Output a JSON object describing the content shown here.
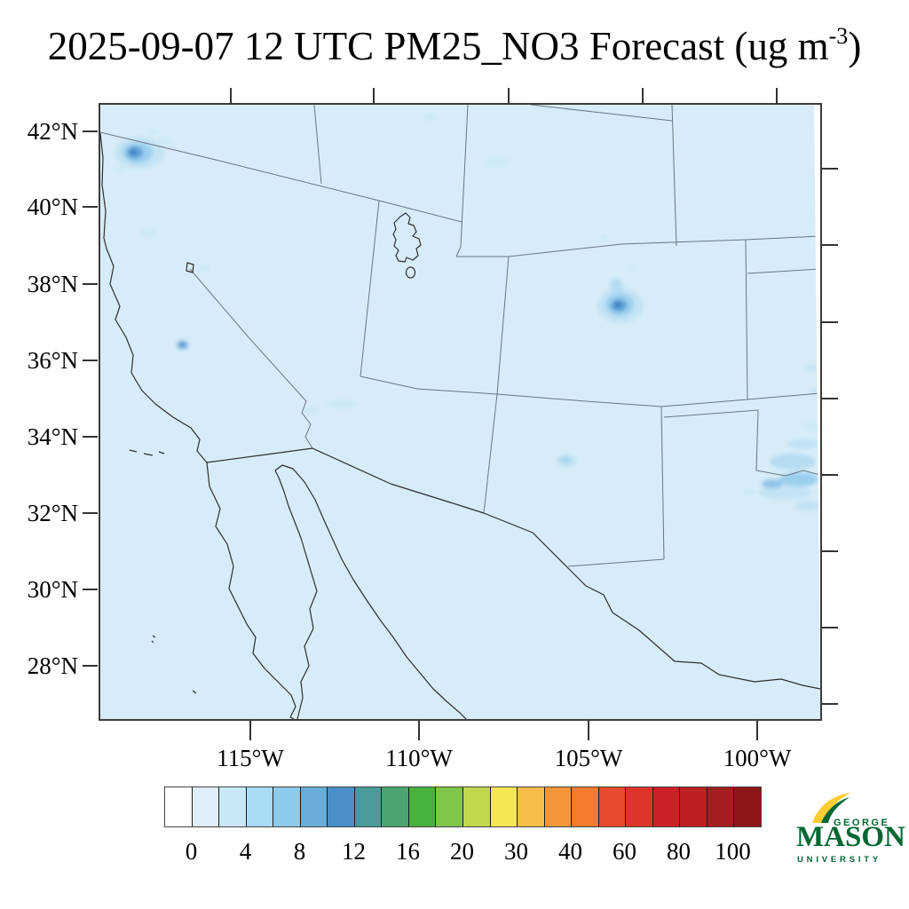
{
  "title": {
    "main": "2025-09-07 12 UTC PM25_NO3 Forecast (ug m",
    "sup": "-3",
    "close": ")"
  },
  "map": {
    "lat_labels": [
      "42°N",
      "40°N",
      "38°N",
      "36°N",
      "34°N",
      "32°N",
      "30°N",
      "28°N"
    ],
    "lon_labels": [
      "115°W",
      "110°W",
      "105°W",
      "100°W"
    ],
    "fill_color": "#d7ecf8",
    "hotspots": [
      {
        "region": "southeast-oregon",
        "approx_value_ug_m3": "8-12"
      },
      {
        "region": "southern-nevada",
        "approx_value_ug_m3": "8-12"
      },
      {
        "region": "southern-colorado",
        "approx_value_ug_m3": "8-14"
      },
      {
        "region": "south-central-new-mexico",
        "approx_value_ug_m3": "2-4"
      },
      {
        "region": "north-texas-right-edge",
        "approx_value_ug_m3": "2-6"
      },
      {
        "region": "wyoming-faint-patches",
        "approx_value_ug_m3": "1-2"
      }
    ]
  },
  "colorbar": {
    "tick_labels": [
      "0",
      "4",
      "8",
      "12",
      "16",
      "20",
      "30",
      "40",
      "60",
      "80",
      "100"
    ],
    "segment_colors": [
      "#ffffff",
      "#dfeff9",
      "#c9e8f7",
      "#a9dcf4",
      "#8dcbec",
      "#68aed9",
      "#4a8fc7",
      "#4a9a99",
      "#4aa571",
      "#47b23e",
      "#80c64b",
      "#c0d84e",
      "#f7e653",
      "#f6bd4a",
      "#f49638",
      "#f57b2e",
      "#e84a2d",
      "#dd3629",
      "#cc2026",
      "#bc2023",
      "#a51d1f",
      "#8e1618"
    ]
  },
  "blobs": [
    [
      44,
      54,
      28,
      18,
      "#c3e3f4"
    ],
    [
      42,
      54,
      17,
      12,
      "#9bcfee"
    ],
    [
      39,
      54,
      9,
      7,
      "#5b9fd6"
    ],
    [
      37,
      53,
      4,
      3,
      "#3a7fc0"
    ],
    [
      72,
      42,
      10,
      6,
      "#cfe9f7"
    ],
    [
      22,
      72,
      8,
      5,
      "#cfe9f7"
    ],
    [
      60,
      30,
      7,
      4,
      "#cfe9f7"
    ],
    [
      93,
      271,
      7,
      5,
      "#8fc4e8"
    ],
    [
      92,
      270,
      4,
      3,
      "#4a8fc7"
    ],
    [
      586,
      226,
      26,
      20,
      "#c3e3f4"
    ],
    [
      585,
      225,
      16,
      13,
      "#9bcfee"
    ],
    [
      584,
      226,
      9,
      7,
      "#5b9fd6"
    ],
    [
      583,
      225,
      3,
      3,
      "#2f6db1"
    ],
    [
      581,
      204,
      7,
      9,
      "#b5dcf2"
    ],
    [
      526,
      401,
      12,
      7,
      "#c3e3f4"
    ],
    [
      524,
      400,
      6,
      4,
      "#a6d6f0"
    ],
    [
      780,
      402,
      26,
      9,
      "#b5dcf2"
    ],
    [
      787,
      422,
      22,
      8,
      "#9bcfee"
    ],
    [
      772,
      437,
      30,
      8,
      "#c3e3f4"
    ],
    [
      792,
      382,
      18,
      6,
      "#c3e3f4"
    ],
    [
      797,
      452,
      15,
      6,
      "#c3e3f4"
    ],
    [
      802,
      362,
      12,
      5,
      "#cfe9f7"
    ],
    [
      757,
      427,
      12,
      5,
      "#8fc4e8"
    ],
    [
      447,
      65,
      14,
      6,
      "#cfe9f7"
    ],
    [
      472,
      74,
      8,
      4,
      "#d6ecf8"
    ],
    [
      372,
      14,
      8,
      4,
      "#cde8f6"
    ],
    [
      567,
      150,
      5,
      4,
      "#cde8f6"
    ],
    [
      599,
      182,
      4,
      3,
      "#cde8f6"
    ],
    [
      272,
      337,
      18,
      5,
      "#cde8f6"
    ],
    [
      237,
      344,
      10,
      4,
      "#cde8f6"
    ],
    [
      54,
      144,
      9,
      5,
      "#cde8f6"
    ],
    [
      117,
      184,
      6,
      4,
      "#cde8f6"
    ],
    [
      800,
      297,
      8,
      4,
      "#c3e3f4"
    ],
    [
      805,
      322,
      6,
      3,
      "#c3e3f4"
    ],
    [
      757,
      437,
      12,
      5,
      "#c3e3f4"
    ],
    [
      732,
      437,
      8,
      4,
      "#cfe9f7"
    ],
    [
      527,
      437,
      6,
      3,
      "#d6ecf8"
    ],
    [
      492,
      442,
      5,
      3,
      "#d6ecf8"
    ],
    [
      342,
      352,
      6,
      3,
      "#d6ecf8"
    ]
  ],
  "logo": {
    "line1": "GEORGE",
    "line2": "MASON",
    "line3": "UNIVERSITY",
    "green": "#006633",
    "gold": "#ffcc33"
  }
}
